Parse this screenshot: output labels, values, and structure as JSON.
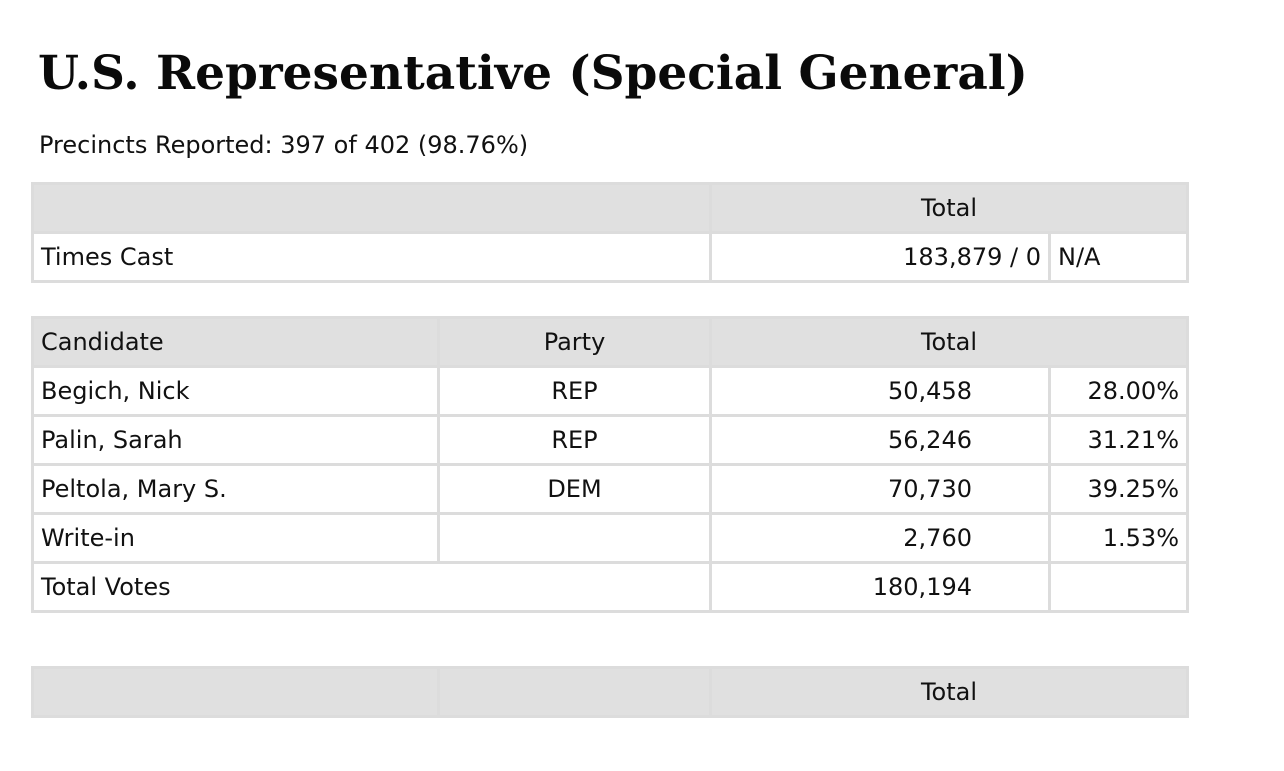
{
  "title": "U.S. Representative (Special General)",
  "precincts_reported": "Precincts Reported: 397 of 402 (98.76%)",
  "times_cast_table": {
    "header_total": "Total",
    "row_label": "Times Cast",
    "row_value": "183,879 / 0",
    "row_pct": "N/A"
  },
  "candidates_table": {
    "headers": {
      "candidate": "Candidate",
      "party": "Party",
      "total": "Total"
    },
    "rows": [
      {
        "candidate": "Begich, Nick",
        "party": "REP",
        "total": "50,458",
        "pct": "28.00%"
      },
      {
        "candidate": "Palin, Sarah",
        "party": "REP",
        "total": "56,246",
        "pct": "31.21%"
      },
      {
        "candidate": "Peltola, Mary S.",
        "party": "DEM",
        "total": "70,730",
        "pct": "39.25%"
      },
      {
        "candidate": "Write-in",
        "party": "",
        "total": "2,760",
        "pct": "1.53%"
      }
    ],
    "total_votes_label": "Total Votes",
    "total_votes_value": "180,194"
  },
  "bottom_table": {
    "header_total": "Total"
  },
  "colors": {
    "header_bg": "#e0e0e0",
    "border": "#dcdcdc",
    "text": "#111111"
  }
}
